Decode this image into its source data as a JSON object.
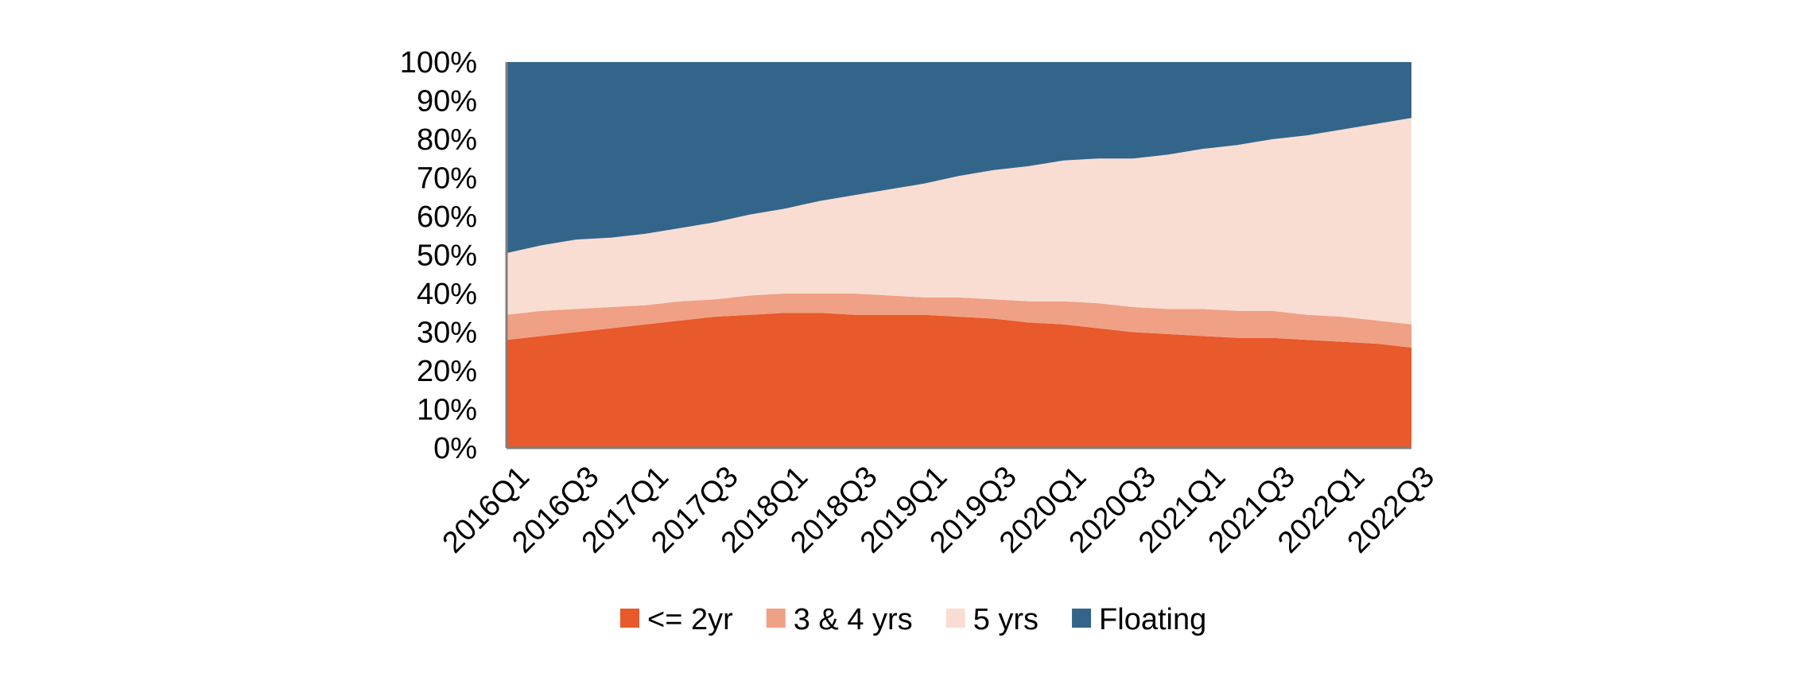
{
  "chart_data": {
    "type": "area",
    "stacked": true,
    "normalized": true,
    "title": "",
    "xlabel": "",
    "ylabel": "",
    "ylim": [
      0,
      100
    ],
    "yticks": [
      "0%",
      "10%",
      "20%",
      "30%",
      "40%",
      "50%",
      "60%",
      "70%",
      "80%",
      "90%",
      "100%"
    ],
    "categories": [
      "2016Q1",
      "2016Q2",
      "2016Q3",
      "2016Q4",
      "2017Q1",
      "2017Q2",
      "2017Q3",
      "2017Q4",
      "2018Q1",
      "2018Q2",
      "2018Q3",
      "2018Q4",
      "2019Q1",
      "2019Q2",
      "2019Q3",
      "2019Q4",
      "2020Q1",
      "2020Q2",
      "2020Q3",
      "2020Q4",
      "2021Q1",
      "2021Q2",
      "2021Q3",
      "2021Q4",
      "2022Q1",
      "2022Q2",
      "2022Q3"
    ],
    "x_tick_labels": [
      "2016Q1",
      "2016Q3",
      "2017Q1",
      "2017Q3",
      "2018Q1",
      "2018Q3",
      "2019Q1",
      "2019Q3",
      "2020Q1",
      "2020Q3",
      "2021Q1",
      "2021Q3",
      "2022Q1",
      "2022Q3"
    ],
    "grid": false,
    "legend_position": "bottom",
    "series": [
      {
        "name": "<= 2yr",
        "color": "#E8592B",
        "values": [
          28,
          29,
          30,
          31,
          32,
          33,
          34,
          34.5,
          35,
          35,
          34.5,
          34.5,
          34.5,
          34,
          33.5,
          32.5,
          32,
          31,
          30,
          29.5,
          29,
          28.5,
          28.5,
          28,
          27.5,
          27,
          26
        ]
      },
      {
        "name": "3 & 4 yrs",
        "color": "#F0A084",
        "values": [
          6.5,
          6.5,
          6,
          5.5,
          5,
          5,
          4.5,
          5,
          5,
          5,
          5.5,
          5,
          4.5,
          5,
          5,
          5.5,
          6,
          6.5,
          6.5,
          6.5,
          7,
          7,
          7,
          6.5,
          6.5,
          6,
          6
        ]
      },
      {
        "name": "5 yrs",
        "color": "#F9DDD3",
        "values": [
          16,
          17,
          18,
          18,
          18.5,
          19,
          20,
          21,
          22,
          24,
          25.5,
          27.5,
          29.5,
          31.5,
          33.5,
          35,
          36.5,
          37.5,
          38.5,
          40,
          41.5,
          43,
          44.5,
          46.5,
          48.5,
          51,
          53.5
        ]
      },
      {
        "name": "Floating",
        "color": "#33658A",
        "values": [
          49.5,
          47.5,
          46,
          45.5,
          44.5,
          43,
          41.5,
          39.5,
          38,
          36,
          34.5,
          33,
          31.5,
          29.5,
          28,
          27,
          25.5,
          25,
          25,
          24,
          22.5,
          21.5,
          20,
          19,
          17.5,
          16,
          14.5
        ]
      }
    ]
  }
}
